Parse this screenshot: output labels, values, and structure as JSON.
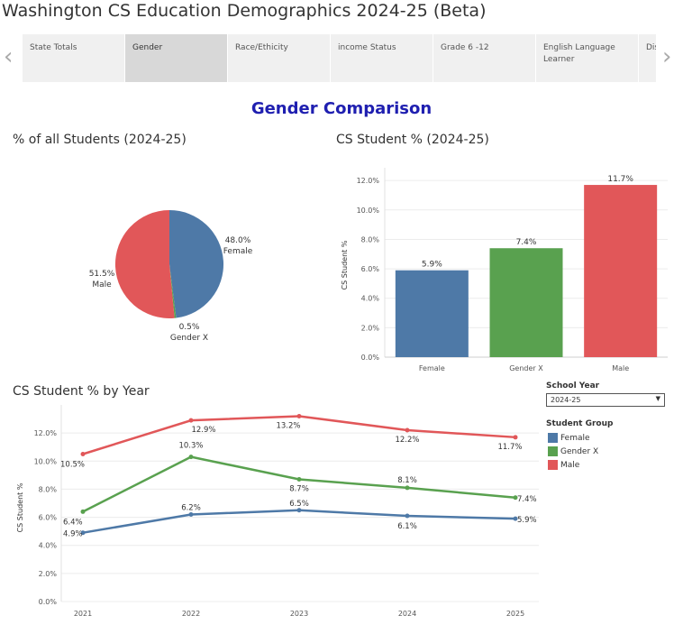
{
  "title": "Washington CS Education Demographics 2024-25 (Beta)",
  "tabs": [
    "State Totals",
    "Gender",
    "Race/Ethicity",
    "income Status",
    "Grade 6 -12",
    "English Language Learner",
    "Dis"
  ],
  "active_tab": 1,
  "nav": {
    "prev_icon": "‹",
    "next_icon": "›"
  },
  "heading": "Gender Comparison",
  "pie_title": "% of all Students (2024-25)",
  "bar_title": "CS Student % (2024-25)",
  "line_title": "CS Student % by Year",
  "filters": {
    "school_year_label": "School Year",
    "school_year_value": "2024-25",
    "group_label": "Student Group",
    "groups": [
      {
        "name": "Female",
        "color": "#4e79a7"
      },
      {
        "name": "Gender X",
        "color": "#59a14f"
      },
      {
        "name": "Male",
        "color": "#e15759"
      }
    ]
  },
  "chart_data": [
    {
      "type": "pie",
      "title": "% of all Students (2024-25)",
      "slices": [
        {
          "label": "Female",
          "value": 48.0,
          "display": "48.0%",
          "color": "#4e79a7"
        },
        {
          "label": "Gender X",
          "value": 0.5,
          "display": "0.5%",
          "color": "#59a14f"
        },
        {
          "label": "Male",
          "value": 51.5,
          "display": "51.5%",
          "color": "#e15759"
        }
      ]
    },
    {
      "type": "bar",
      "title": "CS Student % (2024-25)",
      "ylabel": "CS Student %",
      "categories": [
        "Female",
        "Gender X",
        "Male"
      ],
      "values": [
        5.9,
        7.4,
        11.7
      ],
      "labels": [
        "5.9%",
        "7.4%",
        "11.7%"
      ],
      "colors": [
        "#4e79a7",
        "#59a14f",
        "#e15759"
      ],
      "ylim": [
        0,
        12.5
      ],
      "yticks": [
        "0.0%",
        "2.0%",
        "4.0%",
        "6.0%",
        "8.0%",
        "10.0%",
        "12.0%"
      ]
    },
    {
      "type": "line",
      "title": "CS Student % by Year",
      "ylabel": "CS Student %",
      "x": [
        "2021",
        "2022",
        "2023",
        "2024",
        "2025"
      ],
      "series": [
        {
          "name": "Female",
          "color": "#4e79a7",
          "values": [
            4.9,
            6.2,
            6.5,
            6.1,
            5.9
          ],
          "labels": [
            "4.9%",
            "6.2%",
            "6.5%",
            "6.1%",
            "5.9%"
          ]
        },
        {
          "name": "Gender X",
          "color": "#59a14f",
          "values": [
            6.4,
            10.3,
            8.7,
            8.1,
            7.4
          ],
          "labels": [
            "6.4%",
            "10.3%",
            "8.7%",
            "8.1%",
            "7.4%"
          ]
        },
        {
          "name": "Male",
          "color": "#e15759",
          "values": [
            10.5,
            12.9,
            13.2,
            12.2,
            11.7
          ],
          "labels": [
            "10.5%",
            "12.9%",
            "13.2%",
            "12.2%",
            "11.7%"
          ]
        }
      ],
      "ylim": [
        0,
        14
      ],
      "yticks": [
        "0.0%",
        "2.0%",
        "4.0%",
        "6.0%",
        "8.0%",
        "10.0%",
        "12.0%"
      ]
    }
  ]
}
